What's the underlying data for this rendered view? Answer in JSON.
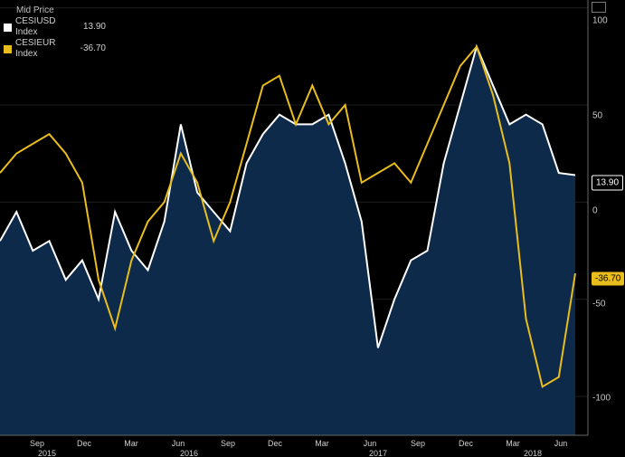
{
  "legend": {
    "header": "Mid Price",
    "items": [
      {
        "name": "CESIUSD Index",
        "value": "13.90",
        "color": "#ffffff"
      },
      {
        "name": "CESIEUR Index",
        "value": "-36.70",
        "color": "#e8bd1c"
      }
    ]
  },
  "last_value_tags": {
    "usd": "13.90",
    "eur": "-36.70"
  },
  "chart_data": {
    "type": "line",
    "y_ticks": [
      "100",
      "50",
      "0",
      "-50",
      "-100"
    ],
    "y_tick_values": [
      100,
      50,
      0,
      -50,
      -100
    ],
    "ylim": [
      -120,
      105
    ],
    "x_ticks": [
      "Sep",
      "Dec",
      "Mar",
      "Jun",
      "Sep",
      "Dec",
      "Mar",
      "Jun",
      "Sep",
      "Dec",
      "Mar",
      "Jun"
    ],
    "x_years": [
      "2015",
      "2016",
      "2017",
      "2018"
    ],
    "x_date_range": [
      "2015-07",
      "2018-06"
    ],
    "series": [
      {
        "name": "CESIUSD Index",
        "color": "#ffffff",
        "fill": "#0d2a4a",
        "x": [
          "2015-07",
          "2015-08",
          "2015-09",
          "2015-10",
          "2015-11",
          "2015-12",
          "2016-01",
          "2016-02",
          "2016-03",
          "2016-04",
          "2016-05",
          "2016-06",
          "2016-07",
          "2016-08",
          "2016-09",
          "2016-10",
          "2016-11",
          "2016-12",
          "2017-01",
          "2017-02",
          "2017-03",
          "2017-04",
          "2017-05",
          "2017-06",
          "2017-07",
          "2017-08",
          "2017-09",
          "2017-10",
          "2017-11",
          "2017-12",
          "2018-01",
          "2018-02",
          "2018-03",
          "2018-04",
          "2018-05",
          "2018-06"
        ],
        "values": [
          -20,
          -5,
          -25,
          -20,
          -40,
          -30,
          -50,
          -5,
          -25,
          -35,
          -10,
          40,
          5,
          -5,
          -15,
          20,
          35,
          45,
          40,
          40,
          45,
          20,
          -10,
          -75,
          -50,
          -30,
          -25,
          20,
          50,
          80,
          60,
          40,
          45,
          40,
          15,
          13.9
        ]
      },
      {
        "name": "CESIEUR Index",
        "color": "#e8bd1c",
        "x": [
          "2015-07",
          "2015-08",
          "2015-09",
          "2015-10",
          "2015-11",
          "2015-12",
          "2016-01",
          "2016-02",
          "2016-03",
          "2016-04",
          "2016-05",
          "2016-06",
          "2016-07",
          "2016-08",
          "2016-09",
          "2016-10",
          "2016-11",
          "2016-12",
          "2017-01",
          "2017-02",
          "2017-03",
          "2017-04",
          "2017-05",
          "2017-06",
          "2017-07",
          "2017-08",
          "2017-09",
          "2017-10",
          "2017-11",
          "2017-12",
          "2018-01",
          "2018-02",
          "2018-03",
          "2018-04",
          "2018-05",
          "2018-06"
        ],
        "values": [
          15,
          25,
          30,
          35,
          25,
          10,
          -40,
          -65,
          -30,
          -10,
          0,
          25,
          10,
          -20,
          0,
          30,
          60,
          65,
          40,
          60,
          40,
          50,
          10,
          15,
          20,
          10,
          30,
          50,
          70,
          80,
          55,
          20,
          -60,
          -95,
          -90,
          -36.7
        ]
      }
    ]
  }
}
